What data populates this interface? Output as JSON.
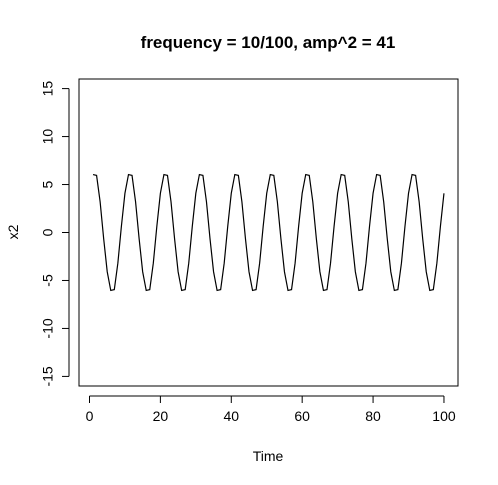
{
  "chart_data": {
    "type": "line",
    "title": "frequency = 10/100, amp^2 = 41",
    "xlabel": "Time",
    "ylabel": "x2",
    "xlim": [
      1,
      100
    ],
    "ylim": [
      -16,
      16
    ],
    "xticks": [
      0,
      20,
      40,
      60,
      80,
      100
    ],
    "yticks": [
      -15,
      -10,
      -5,
      0,
      5,
      10,
      15
    ],
    "grid": false,
    "legend": "none",
    "series": [
      {
        "values": [
          6.04,
          5.95,
          3.2,
          -0.64,
          -4.09,
          -6.04,
          -5.95,
          -3.2,
          0.64,
          4.09,
          6.04,
          5.95,
          3.2,
          -0.64,
          -4.09,
          -6.04,
          -5.95,
          -3.2,
          0.64,
          4.09,
          6.04,
          5.95,
          3.2,
          -0.64,
          -4.09,
          -6.04,
          -5.95,
          -3.2,
          0.64,
          4.09,
          6.04,
          5.95,
          3.2,
          -0.64,
          -4.09,
          -6.04,
          -5.95,
          -3.2,
          0.64,
          4.09,
          6.04,
          5.95,
          3.2,
          -0.64,
          -4.09,
          -6.04,
          -5.95,
          -3.2,
          0.64,
          4.09,
          6.04,
          5.95,
          3.2,
          -0.64,
          -4.09,
          -6.04,
          -5.95,
          -3.2,
          0.64,
          4.09,
          6.04,
          5.95,
          3.2,
          -0.64,
          -4.09,
          -6.04,
          -5.95,
          -3.2,
          0.64,
          4.09,
          6.04,
          5.95,
          3.2,
          -0.64,
          -4.09,
          -6.04,
          -5.95,
          -3.2,
          0.64,
          4.09,
          6.04,
          5.95,
          3.2,
          -0.64,
          -4.09,
          -6.04,
          -5.95,
          -3.2,
          0.64,
          4.09,
          6.04,
          5.95,
          3.2,
          -0.64,
          -4.09,
          -6.04,
          -5.95,
          -3.2,
          0.64,
          4.09
        ]
      }
    ]
  }
}
